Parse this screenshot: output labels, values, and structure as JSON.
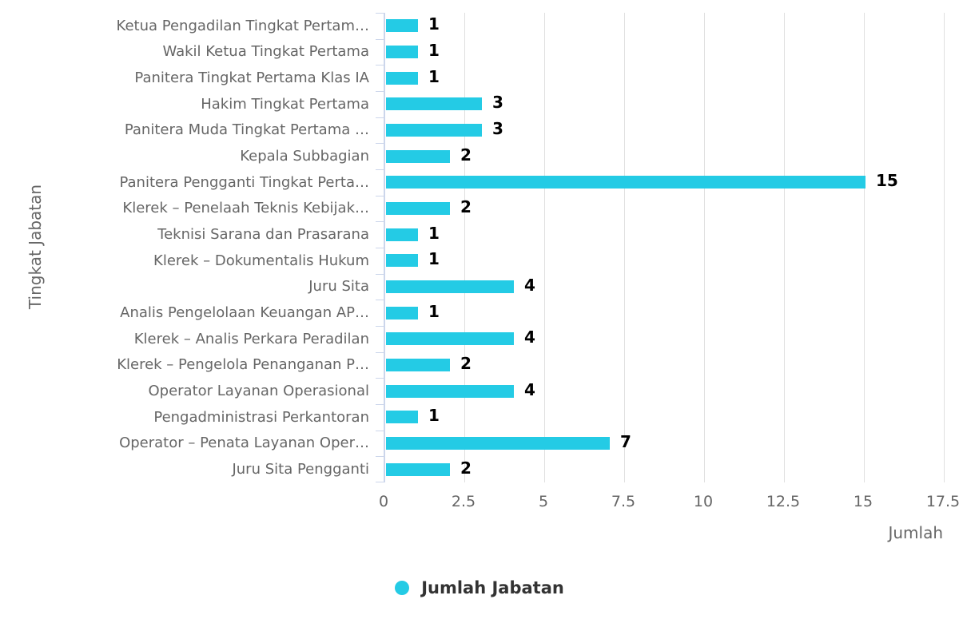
{
  "colors": {
    "bar": "#24CBE5",
    "axis_line": "#CCD6EB",
    "gridline": "#E0E0E0",
    "axis_label": "#666666",
    "data_label": "#000000",
    "legend_text": "#333333",
    "background": "#FFFFFF"
  },
  "chart_data": {
    "type": "bar",
    "orientation": "horizontal",
    "title": "",
    "xlabel": "Jumlah",
    "ylabel": "Tingkat Jabatan",
    "xlim": [
      0,
      17.5
    ],
    "xticks": [
      0,
      2.5,
      5,
      7.5,
      10,
      12.5,
      15,
      17.5
    ],
    "xtick_labels": [
      "0",
      "2.5",
      "5",
      "7.5",
      "10",
      "12.5",
      "15",
      "17.5"
    ],
    "grid": true,
    "legend_position": "bottom",
    "legend_label": "Jumlah Jabatan",
    "series": [
      {
        "name": "Jumlah Jabatan",
        "values": [
          1,
          1,
          1,
          3,
          3,
          2,
          15,
          2,
          1,
          1,
          4,
          1,
          4,
          2,
          4,
          1,
          7,
          2
        ]
      }
    ],
    "categories": [
      "Ketua Pengadilan Tingkat Pertam…",
      "Wakil Ketua Tingkat Pertama",
      "Panitera Tingkat Pertama Klas IA",
      "Hakim Tingkat Pertama",
      "Panitera Muda Tingkat Pertama …",
      "Kepala Subbagian",
      "Panitera Pengganti Tingkat Perta…",
      "Klerek – Penelaah Teknis Kebijak…",
      "Teknisi Sarana dan Prasarana",
      "Klerek – Dokumentalis Hukum",
      "Juru Sita",
      "Analis Pengelolaan Keuangan AP…",
      "Klerek – Analis Perkara Peradilan",
      "Klerek – Pengelola Penanganan P…",
      "Operator Layanan Operasional",
      "Pengadministrasi Perkantoran",
      "Operator – Penata Layanan Oper…",
      "Juru Sita Pengganti"
    ],
    "data_labels": [
      "1",
      "1",
      "1",
      "3",
      "3",
      "2",
      "15",
      "2",
      "1",
      "1",
      "4",
      "1",
      "4",
      "2",
      "4",
      "1",
      "7",
      "2"
    ]
  }
}
